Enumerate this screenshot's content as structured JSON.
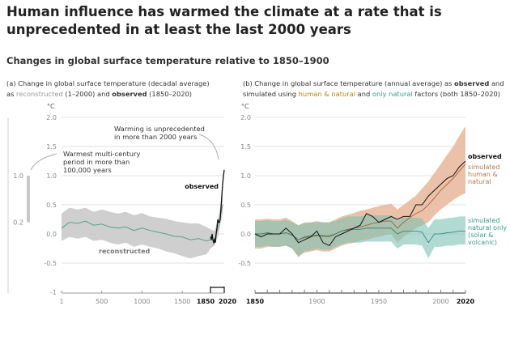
{
  "title": "Human influence has warmed the climate at a rate that is unprecedented in at least the last 2000 years",
  "subtitle": "Changes in global surface temperature relative to 1850–1900",
  "chart_data": [
    {
      "type": "line",
      "panel": "a",
      "caption": {
        "p1": "(a) Change in global surface temperature (decadal average)",
        "p2": "as ",
        "recon": "reconstructed",
        "p3": " (1–2000) and ",
        "obs": "observed",
        "p4": " (1850–2020)"
      },
      "ylabel": "°C",
      "ylim": [
        -1,
        2
      ],
      "yticks": [
        "2.0",
        "1.5",
        "1.0",
        "0.5",
        "0.0",
        "-0.5",
        "-1"
      ],
      "ytick_values": [
        2,
        1.5,
        1,
        0.5,
        0,
        -0.5,
        -1
      ],
      "xticks": [
        "1",
        "500",
        "1000",
        "1500",
        "1850",
        "2020"
      ],
      "xtick_values": [
        1,
        500,
        1000,
        1500,
        1850,
        2020
      ],
      "annotations": {
        "unprecedented": [
          "Warming is unprecedented",
          "in more than 2000 years"
        ],
        "warmest": [
          "Warmest multi-century",
          "period in more than",
          "100,000 years"
        ],
        "observed": "observed",
        "reconstructed": "reconstructed"
      },
      "side_bar": {
        "top_label": "1.0",
        "bottom_label": "0.2",
        "range": [
          0.2,
          1.0
        ]
      },
      "reconstructed": {
        "x": [
          1,
          100,
          200,
          300,
          400,
          500,
          600,
          700,
          800,
          900,
          1000,
          1100,
          1200,
          1300,
          1400,
          1500,
          1600,
          1700,
          1800,
          1850,
          1900,
          1950,
          2000
        ],
        "mean": [
          0.1,
          0.2,
          0.18,
          0.22,
          0.15,
          0.17,
          0.12,
          0.1,
          0.12,
          0.06,
          0.1,
          0.06,
          0.03,
          0.0,
          -0.04,
          -0.05,
          -0.1,
          -0.08,
          -0.12,
          -0.1,
          -0.1,
          0.15,
          0.5
        ],
        "lower": [
          -0.12,
          -0.05,
          -0.08,
          -0.05,
          -0.12,
          -0.1,
          -0.15,
          -0.18,
          -0.15,
          -0.22,
          -0.18,
          -0.22,
          -0.25,
          -0.3,
          -0.33,
          -0.38,
          -0.42,
          -0.38,
          -0.35,
          -0.25,
          -0.2,
          0.0,
          0.35
        ],
        "upper": [
          0.35,
          0.45,
          0.42,
          0.45,
          0.38,
          0.42,
          0.38,
          0.35,
          0.38,
          0.32,
          0.36,
          0.3,
          0.28,
          0.26,
          0.22,
          0.2,
          0.18,
          0.18,
          0.12,
          0.08,
          0.05,
          0.3,
          0.68
        ]
      },
      "observed": {
        "x": [
          1850,
          1860,
          1870,
          1880,
          1890,
          1900,
          1910,
          1920,
          1930,
          1940,
          1950,
          1960,
          1970,
          1980,
          1990,
          2000,
          2010,
          2020
        ],
        "values": [
          -0.05,
          -0.1,
          0.0,
          -0.1,
          -0.15,
          -0.1,
          -0.15,
          0.0,
          0.1,
          0.25,
          0.2,
          0.2,
          0.25,
          0.45,
          0.65,
          0.85,
          1.0,
          1.1
        ]
      }
    },
    {
      "type": "line",
      "panel": "b",
      "caption": {
        "p1": "(b) Change in global surface temperature (annual average) as ",
        "obs": "observed",
        "p2": " and",
        "p3": "simulated using ",
        "hn": "human & natural",
        "p4": " and ",
        "nat": "only natural",
        "p5": " factors (both 1850–2020)"
      },
      "ylabel": "°C",
      "ylim": [
        -1,
        2
      ],
      "yticks": [
        "2.0",
        "1.5",
        "1.0",
        "0.5",
        "0.0",
        "-0.5"
      ],
      "ytick_values": [
        2,
        1.5,
        1,
        0.5,
        0,
        -0.5
      ],
      "xticks": [
        "1850",
        "1900",
        "1950",
        "2000",
        "2020"
      ],
      "xtick_values": [
        1850,
        1900,
        1950,
        2000,
        2020
      ],
      "legend": {
        "observed": "observed",
        "human_natural": [
          "simulated",
          "human &",
          "natural"
        ],
        "natural": [
          "simulated",
          "natural only",
          "(solar &",
          "volcanic)"
        ]
      },
      "colors": {
        "observed": "#111111",
        "human_natural": "#e8b79a",
        "natural": "#7cc2b4",
        "overlap": "#b9b08a"
      },
      "x": [
        1850,
        1855,
        1860,
        1865,
        1870,
        1875,
        1880,
        1885,
        1890,
        1895,
        1900,
        1905,
        1910,
        1915,
        1920,
        1925,
        1930,
        1935,
        1940,
        1945,
        1950,
        1955,
        1960,
        1965,
        1970,
        1975,
        1980,
        1985,
        1990,
        1995,
        2000,
        2005,
        2010,
        2015,
        2020
      ],
      "observed": [
        0.0,
        -0.05,
        0.0,
        0.0,
        0.0,
        0.1,
        0.0,
        -0.15,
        -0.1,
        -0.05,
        0.05,
        -0.15,
        -0.2,
        -0.05,
        0.0,
        0.05,
        0.1,
        0.15,
        0.35,
        0.3,
        0.2,
        0.25,
        0.3,
        0.25,
        0.3,
        0.3,
        0.5,
        0.5,
        0.65,
        0.75,
        0.85,
        0.95,
        1.0,
        1.15,
        1.25
      ],
      "human_natural": {
        "mean": [
          0.0,
          0.0,
          0.02,
          0.0,
          0.0,
          0.02,
          -0.02,
          -0.1,
          -0.06,
          -0.05,
          -0.03,
          -0.04,
          -0.05,
          0.0,
          0.05,
          0.08,
          0.1,
          0.12,
          0.15,
          0.18,
          0.2,
          0.22,
          0.22,
          0.1,
          0.2,
          0.28,
          0.35,
          0.4,
          0.5,
          0.62,
          0.75,
          0.85,
          0.95,
          1.08,
          1.2
        ],
        "lower": [
          -0.25,
          -0.25,
          -0.22,
          -0.22,
          -0.22,
          -0.2,
          -0.25,
          -0.4,
          -0.32,
          -0.3,
          -0.28,
          -0.3,
          -0.3,
          -0.25,
          -0.2,
          -0.17,
          -0.15,
          -0.12,
          -0.1,
          -0.07,
          -0.05,
          -0.02,
          0.0,
          -0.15,
          -0.05,
          0.02,
          0.1,
          0.15,
          0.2,
          0.32,
          0.42,
          0.5,
          0.58,
          0.65,
          0.7
        ],
        "upper": [
          0.25,
          0.25,
          0.26,
          0.25,
          0.25,
          0.28,
          0.22,
          0.15,
          0.2,
          0.2,
          0.22,
          0.2,
          0.2,
          0.25,
          0.3,
          0.33,
          0.36,
          0.4,
          0.42,
          0.45,
          0.48,
          0.5,
          0.52,
          0.42,
          0.5,
          0.58,
          0.66,
          0.78,
          0.9,
          1.05,
          1.2,
          1.35,
          1.5,
          1.68,
          1.85
        ]
      },
      "natural": {
        "mean": [
          0.0,
          0.0,
          0.02,
          0.0,
          0.0,
          0.02,
          -0.02,
          -0.1,
          -0.05,
          -0.03,
          -0.02,
          -0.03,
          -0.03,
          0.0,
          0.05,
          0.07,
          0.08,
          0.08,
          0.1,
          0.1,
          0.1,
          0.1,
          0.1,
          0.0,
          0.05,
          0.05,
          0.05,
          0.03,
          -0.15,
          0.0,
          0.0,
          0.02,
          0.03,
          0.05,
          0.05
        ],
        "lower": [
          -0.22,
          -0.22,
          -0.2,
          -0.22,
          -0.22,
          -0.2,
          -0.25,
          -0.38,
          -0.3,
          -0.28,
          -0.25,
          -0.27,
          -0.27,
          -0.22,
          -0.18,
          -0.15,
          -0.15,
          -0.15,
          -0.13,
          -0.13,
          -0.13,
          -0.13,
          -0.13,
          -0.25,
          -0.18,
          -0.18,
          -0.18,
          -0.2,
          -0.42,
          -0.22,
          -0.22,
          -0.2,
          -0.2,
          -0.18,
          -0.18
        ],
        "upper": [
          0.22,
          0.22,
          0.24,
          0.22,
          0.22,
          0.24,
          0.2,
          0.15,
          0.18,
          0.2,
          0.2,
          0.2,
          0.2,
          0.22,
          0.27,
          0.3,
          0.3,
          0.3,
          0.32,
          0.32,
          0.32,
          0.32,
          0.32,
          0.22,
          0.28,
          0.28,
          0.28,
          0.26,
          0.1,
          0.25,
          0.25,
          0.27,
          0.28,
          0.3,
          0.3
        ]
      }
    }
  ]
}
